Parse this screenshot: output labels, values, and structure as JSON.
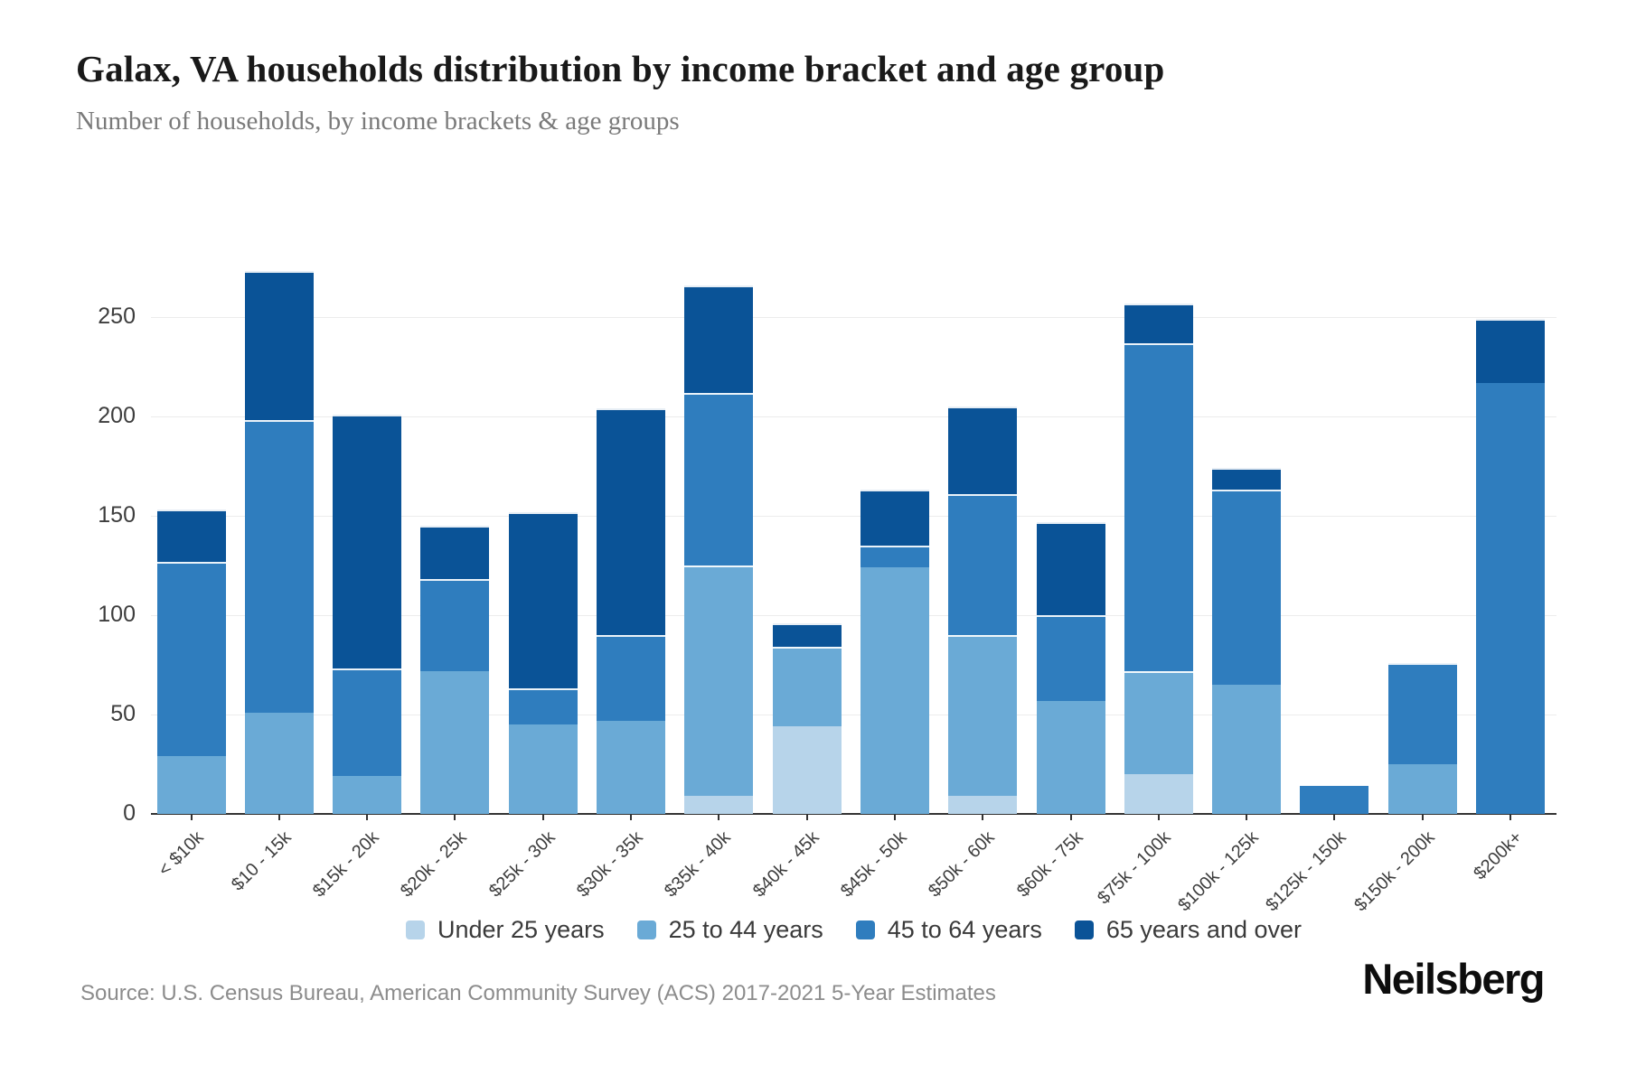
{
  "header": {
    "title": "Galax, VA households distribution by income bracket and age group",
    "subtitle": "Number of households, by income brackets & age groups"
  },
  "chart_data": {
    "type": "bar",
    "stacked": true,
    "title": "Galax, VA households distribution by income bracket and age group",
    "subtitle": "Number of households, by income brackets & age groups",
    "xlabel": "",
    "ylabel": "",
    "categories": [
      "< $10k",
      "$10 - 15k",
      "$15k - 20k",
      "$20k - 25k",
      "$25k - 30k",
      "$30k - 35k",
      "$35k - 40k",
      "$40k - 45k",
      "$45k - 50k",
      "$50k - 60k",
      "$60k - 75k",
      "$75k - 100k",
      "$100k - 125k",
      "$125k - 150k",
      "$150k - 200k",
      "$200k+"
    ],
    "series": [
      {
        "name": "Under 25 years",
        "color": "#b7d4ea",
        "values": [
          0,
          0,
          0,
          0,
          0,
          0,
          9,
          44,
          0,
          9,
          0,
          20,
          0,
          0,
          0,
          0
        ]
      },
      {
        "name": "25 to 44 years",
        "color": "#6aaad6",
        "values": [
          29,
          51,
          19,
          72,
          45,
          47,
          116,
          40,
          124,
          81,
          57,
          52,
          65,
          0,
          25,
          0
        ]
      },
      {
        "name": "45 to 64 years",
        "color": "#2f7dbe",
        "values": [
          98,
          147,
          54,
          46,
          18,
          43,
          87,
          0,
          11,
          71,
          43,
          165,
          98,
          14,
          51,
          217
        ]
      },
      {
        "name": "65 years and over",
        "color": "#0a5397",
        "values": [
          26,
          75,
          128,
          27,
          89,
          114,
          54,
          12,
          28,
          44,
          47,
          20,
          11,
          0,
          0,
          32
        ]
      }
    ],
    "totals": [
      153,
      273,
      201,
      145,
      152,
      204,
      266,
      96,
      163,
      205,
      147,
      257,
      174,
      14,
      76,
      249
    ],
    "yticks": [
      0,
      50,
      100,
      150,
      200,
      250
    ],
    "ylim": [
      0,
      280
    ],
    "grid": true,
    "legend_position": "bottom"
  },
  "footer": {
    "source": "Source: U.S. Census Bureau, American Community Survey (ACS) 2017-2021 5-Year Estimates",
    "logo": "Neilsberg"
  }
}
